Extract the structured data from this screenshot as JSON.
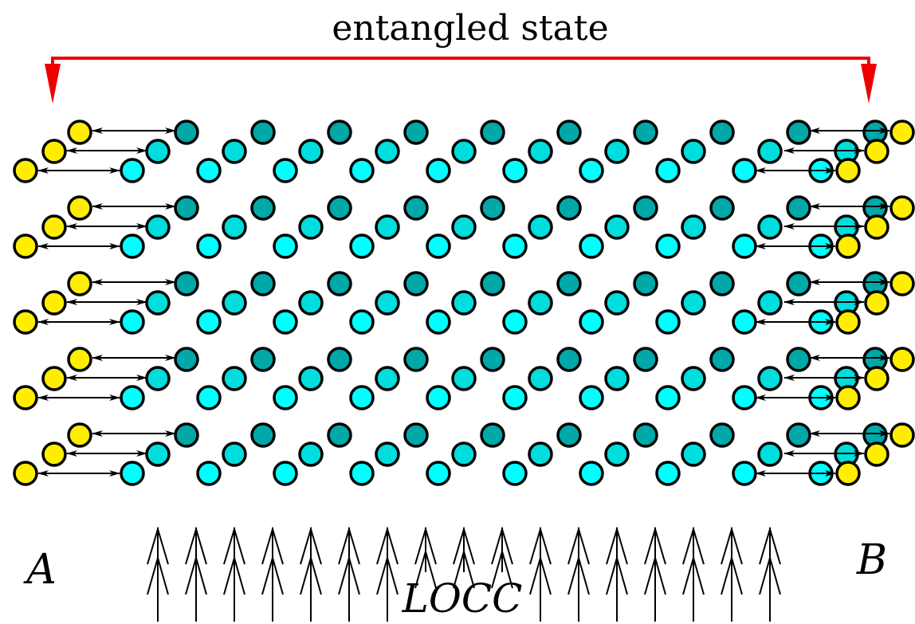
{
  "diagram": {
    "title": "entangled state",
    "party_a": "A",
    "party_b": "B",
    "operation": "LOCC",
    "colors": {
      "bracket": "#ee0000",
      "end_particle": "#ffee00",
      "bulk_particle_light": "#00ffff",
      "bulk_particle_mid": "#00dddd",
      "bulk_particle_dark": "#00a8a8",
      "outline": "#000000"
    },
    "particle_rows": 5,
    "bulk_columns": 10,
    "upward_arrow_count": 17
  }
}
